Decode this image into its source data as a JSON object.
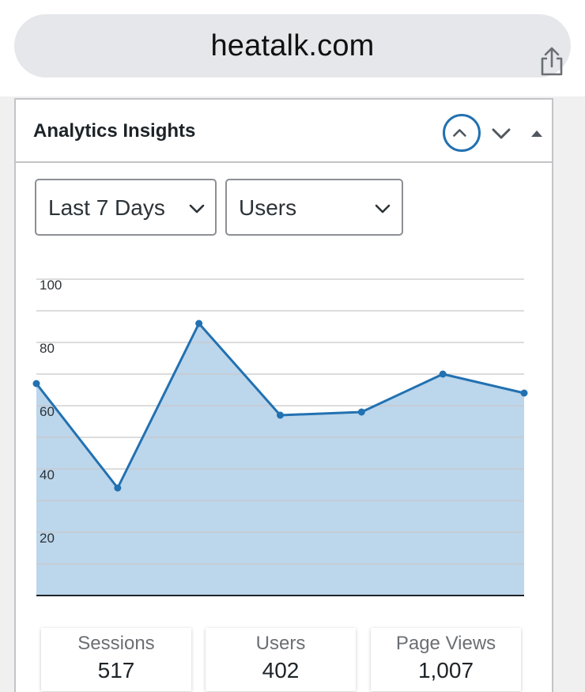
{
  "browser": {
    "url": "heatalk.com",
    "share_icon": "share-icon"
  },
  "widget": {
    "title": "Analytics Insights",
    "controls": {
      "move_up_icon": "chevron-up-icon",
      "move_down_icon": "chevron-down-icon",
      "toggle_icon": "triangle-up-icon"
    }
  },
  "filters": {
    "range": {
      "selected": "Last 7 Days",
      "icon": "chevron-down-icon"
    },
    "metric": {
      "selected": "Users",
      "icon": "chevron-down-icon"
    }
  },
  "chart_data": {
    "type": "area",
    "x": [
      1,
      2,
      3,
      4,
      5,
      6,
      7
    ],
    "series": [
      {
        "values": [
          67,
          34,
          86,
          57,
          58,
          70,
          64
        ]
      }
    ],
    "y_ticks": [
      "20",
      "40",
      "60",
      "80",
      "100"
    ],
    "ylim": [
      0,
      100
    ],
    "grid": true,
    "colors": {
      "line": "#2271b1",
      "fill": "#bcd6ec",
      "grid": "#c8c8c8",
      "axis": "#1d2327"
    }
  },
  "stats": [
    {
      "label": "Sessions",
      "value": "517"
    },
    {
      "label": "Users",
      "value": "402"
    },
    {
      "label": "Page Views",
      "value": "1,007"
    }
  ]
}
